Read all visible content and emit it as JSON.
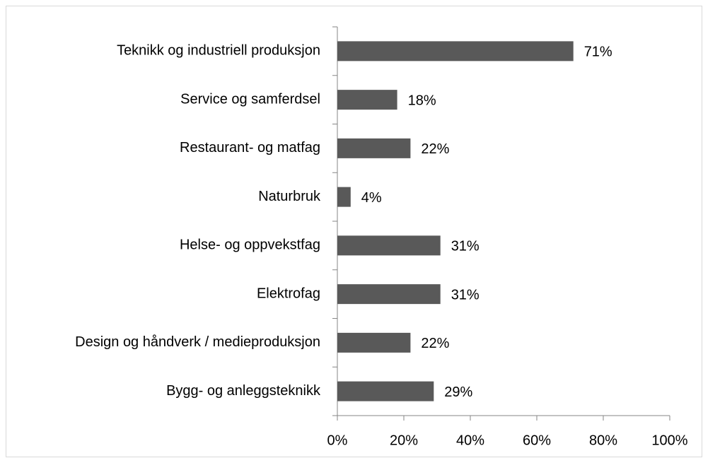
{
  "chart_data": {
    "type": "bar",
    "orientation": "horizontal",
    "categories": [
      "Teknikk og industriell produksjon",
      "Service og samferdsel",
      "Restaurant- og matfag",
      "Naturbruk",
      "Helse- og oppvekstfag",
      "Elektrofag",
      "Design og håndverk / medieproduksjon",
      "Bygg- og anleggsteknikk"
    ],
    "values": [
      71,
      18,
      22,
      4,
      31,
      31,
      22,
      29
    ],
    "value_labels": [
      "71%",
      "18%",
      "22%",
      "4%",
      "31%",
      "31%",
      "22%",
      "29%"
    ],
    "color": "#595959",
    "xlim": [
      0,
      100
    ],
    "xticks": [
      {
        "value": 0,
        "label": "0%"
      },
      {
        "value": 20,
        "label": "20%"
      },
      {
        "value": 40,
        "label": "40%"
      },
      {
        "value": 60,
        "label": "60%"
      },
      {
        "value": 80,
        "label": "80%"
      },
      {
        "value": 100,
        "label": "100%"
      }
    ],
    "grid": false
  }
}
